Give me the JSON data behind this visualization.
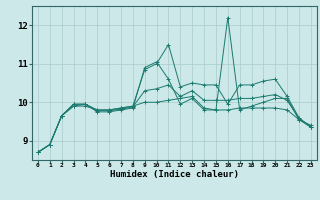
{
  "xlabel": "Humidex (Indice chaleur)",
  "ylabel": "",
  "xlim": [
    -0.5,
    23.5
  ],
  "ylim": [
    8.5,
    12.5
  ],
  "xticks": [
    0,
    1,
    2,
    3,
    4,
    5,
    6,
    7,
    8,
    9,
    10,
    11,
    12,
    13,
    14,
    15,
    16,
    17,
    18,
    19,
    20,
    21,
    22,
    23
  ],
  "yticks": [
    9,
    10,
    11,
    12
  ],
  "background_color": "#cce8e8",
  "grid_color": "#aacccc",
  "line_color": "#1a7a6e",
  "series": [
    [
      8.7,
      8.9,
      9.65,
      9.95,
      9.95,
      9.75,
      9.75,
      9.8,
      9.85,
      10.9,
      11.05,
      10.6,
      9.95,
      10.1,
      9.8,
      9.8,
      12.2,
      9.8,
      9.9,
      10.0,
      10.1,
      10.1,
      9.55,
      9.4
    ],
    [
      8.7,
      8.9,
      9.65,
      9.95,
      9.95,
      9.8,
      9.8,
      9.85,
      9.9,
      10.85,
      11.0,
      11.5,
      10.4,
      10.5,
      10.45,
      10.45,
      9.95,
      10.45,
      10.45,
      10.55,
      10.6,
      10.15,
      9.6,
      9.35
    ],
    [
      8.7,
      8.9,
      9.65,
      9.9,
      9.9,
      9.8,
      9.8,
      9.85,
      9.9,
      10.0,
      10.0,
      10.05,
      10.1,
      10.15,
      9.85,
      9.8,
      9.8,
      9.85,
      9.85,
      9.85,
      9.85,
      9.8,
      9.55,
      9.35
    ],
    [
      8.7,
      8.9,
      9.65,
      9.9,
      9.95,
      9.78,
      9.78,
      9.82,
      9.88,
      10.3,
      10.35,
      10.45,
      10.15,
      10.3,
      10.05,
      10.05,
      10.05,
      10.1,
      10.1,
      10.15,
      10.2,
      10.05,
      9.57,
      9.37
    ]
  ]
}
